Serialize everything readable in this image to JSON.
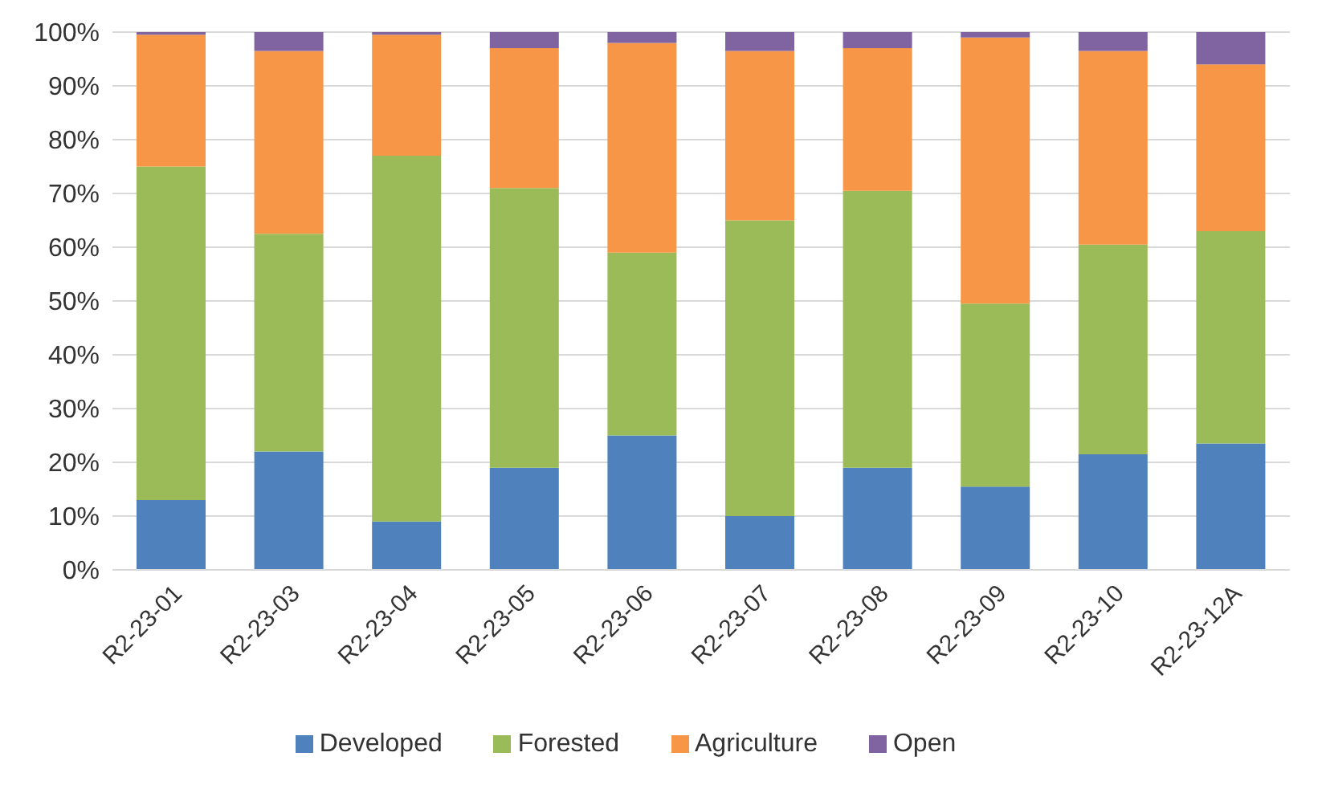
{
  "chart_data": {
    "type": "bar",
    "stacked": true,
    "categories": [
      "R2-23-01",
      "R2-23-03",
      "R2-23-04",
      "R2-23-05",
      "R2-23-06",
      "R2-23-07",
      "R2-23-08",
      "R2-23-09",
      "R2-23-10",
      "R2-23-12A"
    ],
    "series": [
      {
        "name": "Developed",
        "color": "#4f81bd",
        "values": [
          13,
          22,
          9,
          19,
          25,
          10,
          19,
          15.5,
          21.5,
          23.5
        ]
      },
      {
        "name": "Forested",
        "color": "#9bbb59",
        "values": [
          62,
          40.5,
          68,
          52,
          34,
          55,
          51.5,
          34,
          39,
          39.5
        ]
      },
      {
        "name": "Agriculture",
        "color": "#f79646",
        "values": [
          24.5,
          34,
          22.5,
          26,
          39,
          31.5,
          26.5,
          49.5,
          36,
          31
        ]
      },
      {
        "name": "Open",
        "color": "#8064a2",
        "values": [
          0.5,
          3.5,
          0.5,
          3,
          2,
          3.5,
          3,
          1,
          3.5,
          6
        ]
      }
    ],
    "ylim": [
      0,
      100
    ],
    "yticks": [
      {
        "value": 0,
        "label": "0%"
      },
      {
        "value": 10,
        "label": "10%"
      },
      {
        "value": 20,
        "label": "20%"
      },
      {
        "value": 30,
        "label": "30%"
      },
      {
        "value": 40,
        "label": "40%"
      },
      {
        "value": 50,
        "label": "50%"
      },
      {
        "value": 60,
        "label": "60%"
      },
      {
        "value": 70,
        "label": "70%"
      },
      {
        "value": 80,
        "label": "80%"
      },
      {
        "value": 90,
        "label": "90%"
      },
      {
        "value": 100,
        "label": "100%"
      }
    ],
    "grid": "y",
    "legend": "bottom"
  }
}
